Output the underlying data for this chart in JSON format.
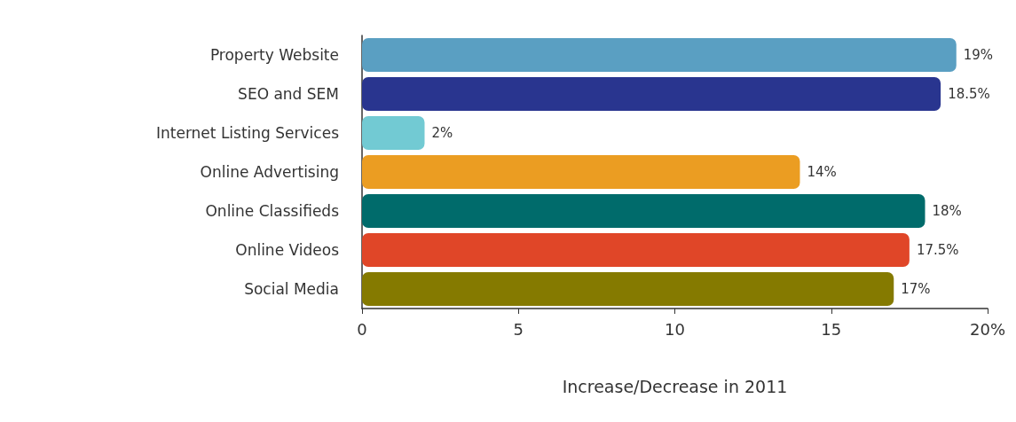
{
  "chart_data": {
    "type": "bar",
    "orientation": "horizontal",
    "xlabel": "Increase/Decrease in 2011",
    "categories": [
      "Property Website",
      "SEO and SEM",
      "Internet Listing Services",
      "Online Advertising",
      "Online Classifieds",
      "Online Videos",
      "Social Media"
    ],
    "values": [
      19,
      18.5,
      2,
      14,
      18,
      17.5,
      17
    ],
    "colors": [
      "#5a9fc2",
      "#29358f",
      "#72cad3",
      "#eb9d22",
      "#006b6b",
      "#e04628",
      "#857a00"
    ],
    "value_labels": [
      "19%",
      "18.5%",
      "2%",
      "14%",
      "18%",
      "17.5%",
      "17%"
    ],
    "xlim": [
      0,
      20
    ],
    "xticks": [
      0,
      5,
      10,
      15,
      {
        "value": 20,
        "label": "20%"
      }
    ],
    "grid": false
  }
}
